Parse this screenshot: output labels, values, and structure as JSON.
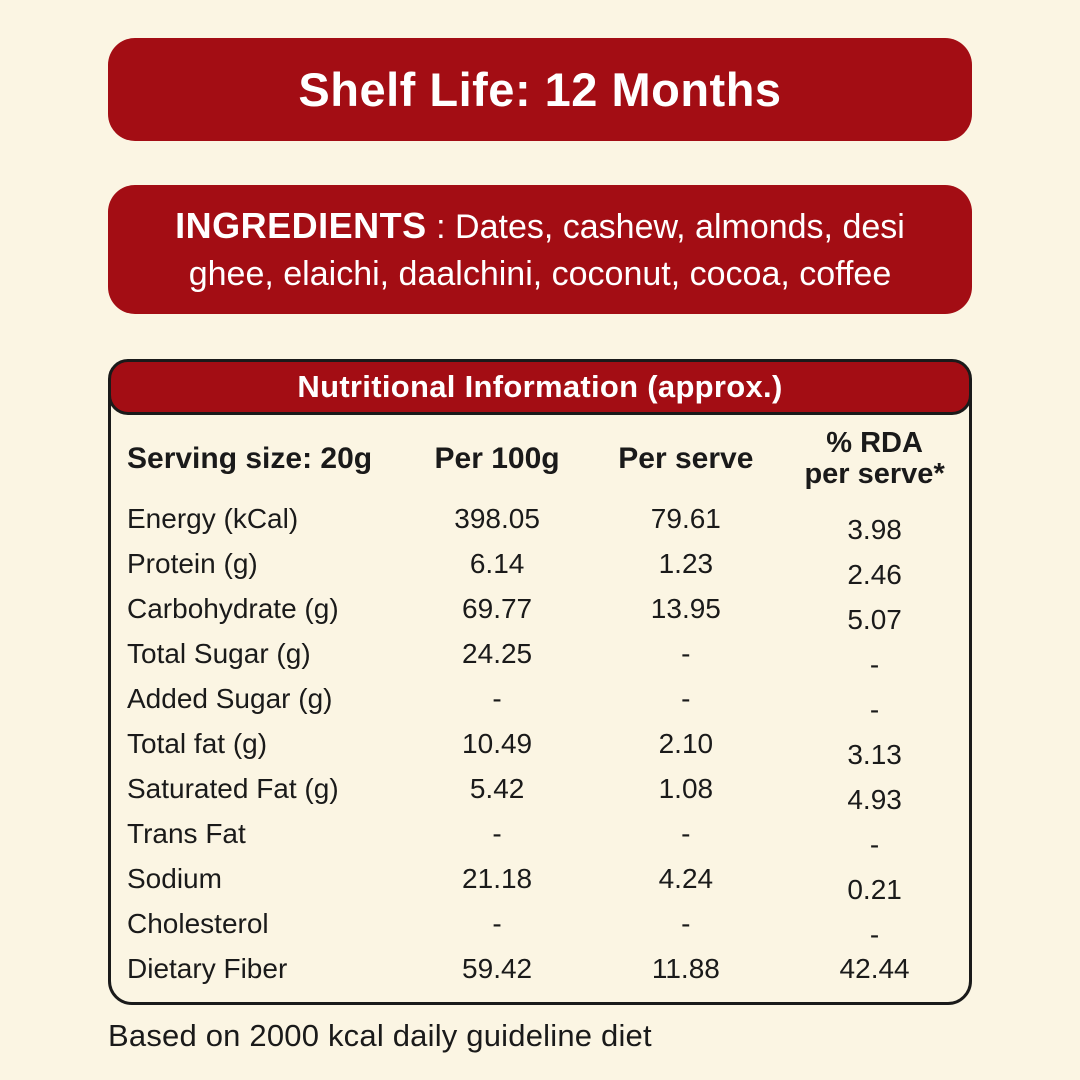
{
  "page": {
    "background_color": "#FBF5E3",
    "accent_red": "#A30D14",
    "text_color": "#1A1A1A"
  },
  "shelf_life_banner": {
    "text": "Shelf Life: 12 Months"
  },
  "ingredients_banner": {
    "label": "INGREDIENTS",
    "text": ": Dates, cashew, almonds, desi ghee, elaichi, daalchini, coconut, cocoa, coffee"
  },
  "nutrition_table": {
    "title": "Nutritional Information (approx.)",
    "header": {
      "serving": "Serving size: 20g",
      "per_100g": "Per 100g",
      "per_serve": "Per serve",
      "rda_line1": "% RDA",
      "rda_line2": "per serve*"
    },
    "rows": [
      {
        "label": "Energy (kCal)",
        "per_100g": "398.05",
        "per_serve": "79.61",
        "rda": "3.98"
      },
      {
        "label": "Protein (g)",
        "per_100g": "6.14",
        "per_serve": "1.23",
        "rda": "2.46"
      },
      {
        "label": "Carbohydrate (g)",
        "per_100g": "69.77",
        "per_serve": "13.95",
        "rda": "5.07"
      },
      {
        "label": "Total Sugar (g)",
        "per_100g": "24.25",
        "per_serve": "-",
        "rda": "-"
      },
      {
        "label": "Added Sugar (g)",
        "per_100g": "-",
        "per_serve": "-",
        "rda": "-"
      },
      {
        "label": "Total fat (g)",
        "per_100g": "10.49",
        "per_serve": "2.10",
        "rda": "3.13"
      },
      {
        "label": "Saturated Fat (g)",
        "per_100g": "5.42",
        "per_serve": "1.08",
        "rda": "4.93"
      },
      {
        "label": "Trans Fat",
        "per_100g": "-",
        "per_serve": "-",
        "rda": "-"
      },
      {
        "label": "Sodium",
        "per_100g": "21.18",
        "per_serve": "4.24",
        "rda": "0.21"
      },
      {
        "label": "Cholesterol",
        "per_100g": "-",
        "per_serve": "-",
        "rda": "-"
      },
      {
        "label": "Dietary Fiber",
        "per_100g": "59.42",
        "per_serve": "11.88",
        "rda": "42.44"
      }
    ]
  },
  "footnote": {
    "text": "Based on 2000 kcal daily guideline diet"
  }
}
